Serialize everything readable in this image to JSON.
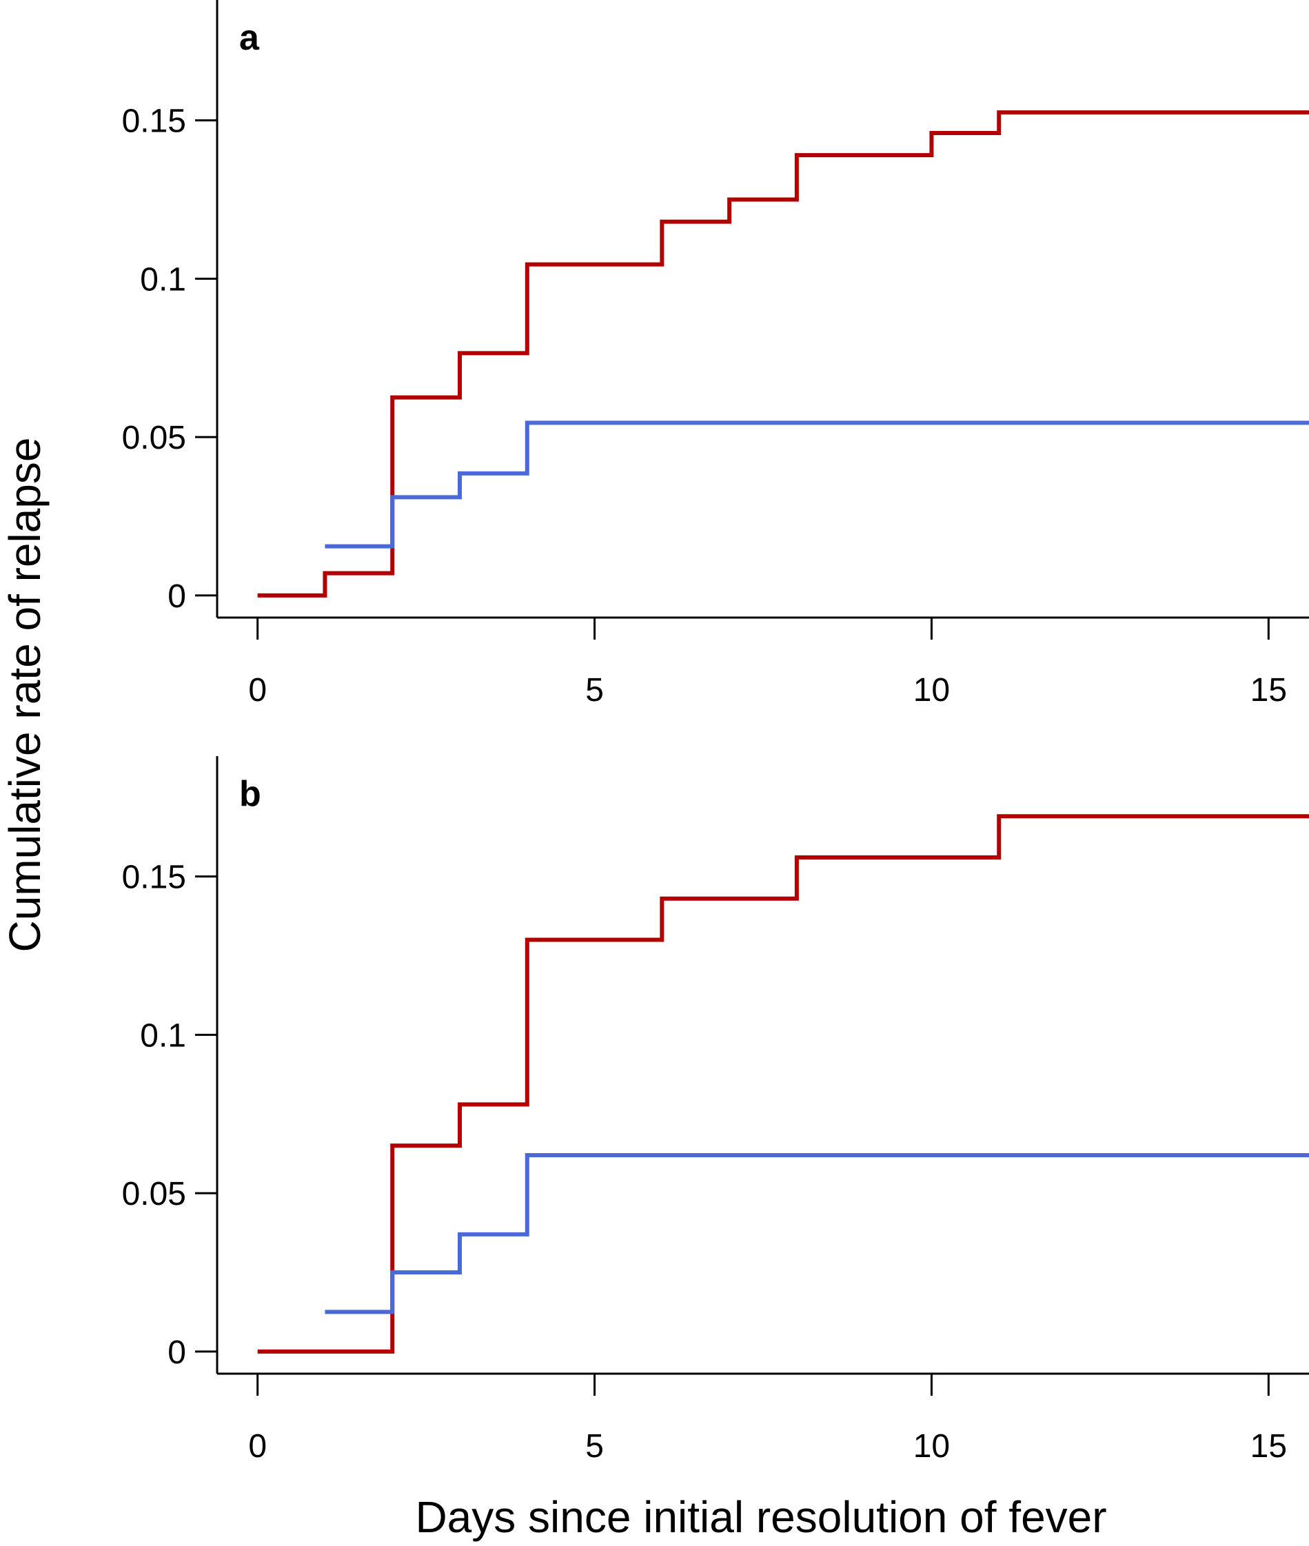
{
  "chart_data": [
    {
      "type": "line",
      "panel_label": "a",
      "x_ticks": [
        "0",
        "5",
        "10",
        "15"
      ],
      "y_ticks": [
        "0",
        "0.05",
        "0.1",
        "0.15"
      ],
      "xlim": [
        -0.6,
        15.6
      ],
      "ylim": [
        -0.007,
        0.188
      ],
      "grid": false,
      "series": [
        {
          "color": "#b30000",
          "step": true,
          "x": [
            0,
            1,
            2,
            3,
            4,
            6,
            7,
            8,
            10,
            11,
            15.6
          ],
          "y": [
            0,
            0.007,
            0.0625,
            0.0765,
            0.1045,
            0.118,
            0.125,
            0.139,
            0.146,
            0.1525,
            0.1525
          ]
        },
        {
          "color": "#4a6ad8",
          "step": true,
          "x": [
            1,
            2,
            3,
            4,
            15.6
          ],
          "y": [
            0.0155,
            0.031,
            0.0385,
            0.0545,
            0.0545
          ]
        }
      ]
    },
    {
      "type": "line",
      "panel_label": "b",
      "x_ticks": [
        "0",
        "5",
        "10",
        "15"
      ],
      "y_ticks": [
        "0",
        "0.05",
        "0.1",
        "0.15"
      ],
      "xlim": [
        -0.6,
        15.6
      ],
      "ylim": [
        -0.007,
        0.188
      ],
      "grid": false,
      "series": [
        {
          "color": "#b30000",
          "step": true,
          "x": [
            0,
            2,
            3,
            4,
            6,
            8,
            11,
            15.6
          ],
          "y": [
            0,
            0.065,
            0.078,
            0.13,
            0.143,
            0.156,
            0.169,
            0.169
          ]
        },
        {
          "color": "#4a6ad8",
          "step": true,
          "x": [
            1,
            2,
            3,
            4,
            15.6
          ],
          "y": [
            0.0125,
            0.025,
            0.037,
            0.062,
            0.062
          ]
        }
      ]
    }
  ],
  "ylabel": "Cumulative rate of relapse",
  "xlabel": "Days since initial resolution of fever"
}
